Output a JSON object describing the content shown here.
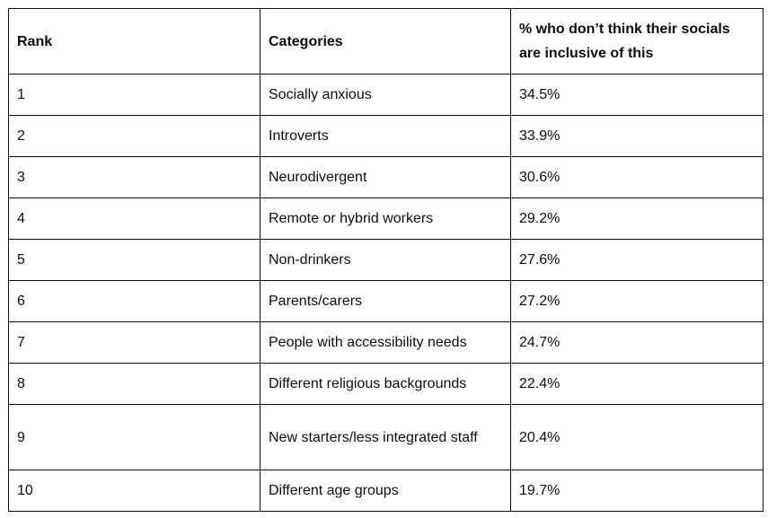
{
  "table": {
    "headers": [
      "Rank",
      "Categories",
      "% who don’t think their socials are inclusive of this"
    ],
    "rows": [
      {
        "rank": "1",
        "category": "Socially anxious",
        "percent": "34.5%"
      },
      {
        "rank": "2",
        "category": "Introverts",
        "percent": "33.9%"
      },
      {
        "rank": "3",
        "category": "Neurodivergent",
        "percent": "30.6%"
      },
      {
        "rank": "4",
        "category": "Remote or hybrid workers",
        "percent": "29.2%"
      },
      {
        "rank": "5",
        "category": "Non-drinkers",
        "percent": "27.6%"
      },
      {
        "rank": "6",
        "category": "Parents/carers",
        "percent": "27.2%"
      },
      {
        "rank": "7",
        "category": "People with accessibility needs",
        "percent": "24.7%"
      },
      {
        "rank": "8",
        "category": "Different religious backgrounds",
        "percent": "22.4%"
      },
      {
        "rank": "9",
        "category": "New starters/less integrated staff",
        "percent": "20.4%"
      },
      {
        "rank": "10",
        "category": "Different age groups",
        "percent": "19.7%"
      }
    ]
  }
}
